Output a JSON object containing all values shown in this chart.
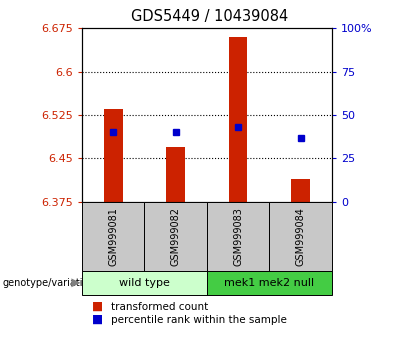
{
  "title": "GDS5449 / 10439084",
  "samples": [
    "GSM999081",
    "GSM999082",
    "GSM999083",
    "GSM999084"
  ],
  "bar_values": [
    6.535,
    6.47,
    6.66,
    6.415
  ],
  "percentile_values": [
    40,
    40,
    43,
    37
  ],
  "y_min": 6.375,
  "y_max": 6.675,
  "y_ticks": [
    6.375,
    6.45,
    6.525,
    6.6,
    6.675
  ],
  "y_tick_labels": [
    "6.375",
    "6.45",
    "6.525",
    "6.6",
    "6.675"
  ],
  "y2_ticks": [
    0,
    25,
    50,
    75,
    100
  ],
  "y2_tick_labels": [
    "0",
    "25",
    "50",
    "75",
    "100%"
  ],
  "bar_color": "#CC2200",
  "square_color": "#0000CC",
  "group_wt_color": "#CCFFCC",
  "group_mek_color": "#44CC44",
  "sample_bg_color": "#C8C8C8"
}
